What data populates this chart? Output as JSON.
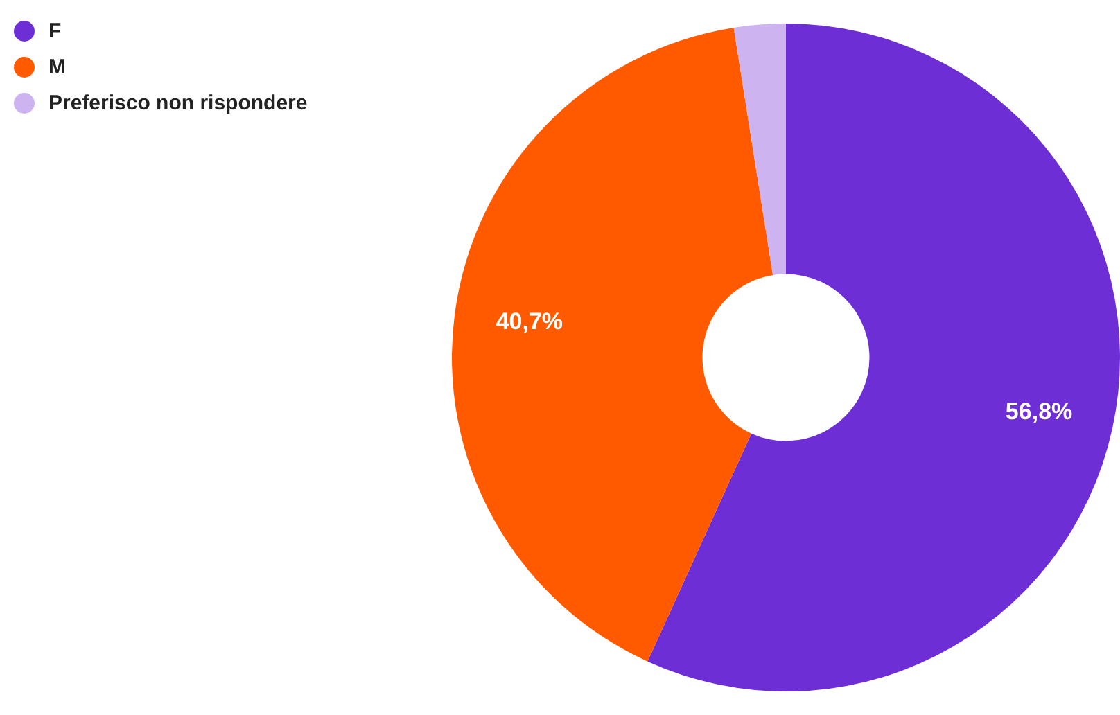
{
  "chart_data": {
    "type": "donut",
    "categories": [
      "F",
      "M",
      "Preferisco non rispondere"
    ],
    "values": [
      56.8,
      40.7,
      2.5
    ],
    "colors": [
      "#6d2ed6",
      "#ff5a00",
      "#cdb4f0"
    ],
    "value_labels": [
      "56,8%",
      "40,7%",
      null
    ],
    "legend": "top left"
  }
}
